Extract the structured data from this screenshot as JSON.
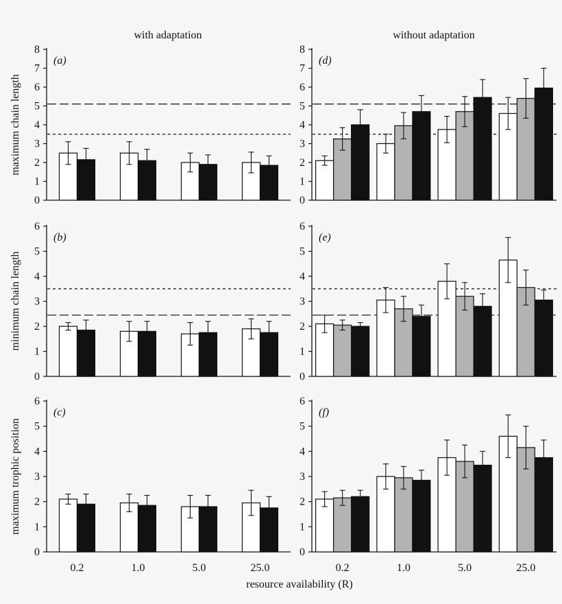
{
  "figure": {
    "column_titles": [
      "with adaptation",
      "without adaptation"
    ],
    "row_ylabels": [
      "maximum chain length",
      "minimum chain length",
      "maximum trophic position"
    ],
    "xlabel": "resource availability (R)",
    "categories": [
      "0.2",
      "1.0",
      "5.0",
      "25.0"
    ]
  },
  "colors": {
    "white_bar": "#ffffff",
    "grey_bar": "#b3b3b3",
    "black_bar": "#111111",
    "axis": "#111111"
  },
  "chart_data": [
    {
      "type": "bar",
      "panel_label": "(a)",
      "ylabel": "maximum chain length",
      "categories": [
        "0.2",
        "1.0",
        "5.0",
        "25.0"
      ],
      "ylim": [
        0,
        8
      ],
      "yticks": [
        0,
        1,
        2,
        3,
        4,
        5,
        6,
        7,
        8
      ],
      "series": [
        {
          "style": "white",
          "values": [
            2.5,
            2.5,
            2.0,
            2.0
          ],
          "errors": [
            0.6,
            0.6,
            0.5,
            0.55
          ]
        },
        {
          "style": "black",
          "values": [
            2.15,
            2.1,
            1.9,
            1.85
          ],
          "errors": [
            0.6,
            0.6,
            0.5,
            0.5
          ]
        }
      ],
      "reference_lines": [
        {
          "y": 5.1,
          "style": "long-dash"
        },
        {
          "y": 3.5,
          "style": "short-dash"
        }
      ]
    },
    {
      "type": "bar",
      "panel_label": "(b)",
      "ylabel": "minimum chain length",
      "categories": [
        "0.2",
        "1.0",
        "5.0",
        "25.0"
      ],
      "ylim": [
        0,
        6
      ],
      "yticks": [
        0,
        1,
        2,
        3,
        4,
        5,
        6
      ],
      "series": [
        {
          "style": "white",
          "values": [
            2.0,
            1.8,
            1.7,
            1.9
          ],
          "errors": [
            0.15,
            0.4,
            0.45,
            0.4
          ]
        },
        {
          "style": "black",
          "values": [
            1.85,
            1.8,
            1.75,
            1.75
          ],
          "errors": [
            0.4,
            0.4,
            0.45,
            0.45
          ]
        }
      ],
      "reference_lines": [
        {
          "y": 3.5,
          "style": "short-dash"
        },
        {
          "y": 2.45,
          "style": "long-dash"
        }
      ]
    },
    {
      "type": "bar",
      "panel_label": "(c)",
      "ylabel": "maximum trophic position",
      "categories": [
        "0.2",
        "1.0",
        "5.0",
        "25.0"
      ],
      "ylim": [
        0,
        6
      ],
      "yticks": [
        0,
        1,
        2,
        3,
        4,
        5,
        6
      ],
      "series": [
        {
          "style": "white",
          "values": [
            2.1,
            1.95,
            1.8,
            1.95
          ],
          "errors": [
            0.2,
            0.35,
            0.45,
            0.5
          ]
        },
        {
          "style": "black",
          "values": [
            1.9,
            1.85,
            1.8,
            1.75
          ],
          "errors": [
            0.4,
            0.4,
            0.45,
            0.45
          ]
        }
      ],
      "reference_lines": []
    },
    {
      "type": "bar",
      "panel_label": "(d)",
      "ylabel": "maximum chain length",
      "categories": [
        "0.2",
        "1.0",
        "5.0",
        "25.0"
      ],
      "ylim": [
        0,
        8
      ],
      "yticks": [
        0,
        1,
        2,
        3,
        4,
        5,
        6,
        7,
        8
      ],
      "series": [
        {
          "style": "white",
          "values": [
            2.1,
            3.0,
            3.75,
            4.6
          ],
          "errors": [
            0.25,
            0.5,
            0.7,
            0.85
          ]
        },
        {
          "style": "grey",
          "values": [
            3.25,
            3.95,
            4.7,
            5.4
          ],
          "errors": [
            0.6,
            0.7,
            0.8,
            1.05
          ]
        },
        {
          "style": "black",
          "values": [
            4.0,
            4.7,
            5.45,
            5.95
          ],
          "errors": [
            0.8,
            0.85,
            0.95,
            1.05
          ]
        }
      ],
      "reference_lines": [
        {
          "y": 5.1,
          "style": "long-dash"
        },
        {
          "y": 3.5,
          "style": "short-dash"
        }
      ]
    },
    {
      "type": "bar",
      "panel_label": "(e)",
      "ylabel": "minimum chain length",
      "categories": [
        "0.2",
        "1.0",
        "5.0",
        "25.0"
      ],
      "ylim": [
        0,
        6
      ],
      "yticks": [
        0,
        1,
        2,
        3,
        4,
        5,
        6
      ],
      "series": [
        {
          "style": "white",
          "values": [
            2.1,
            3.05,
            3.8,
            4.65
          ],
          "errors": [
            0.35,
            0.5,
            0.7,
            0.9
          ]
        },
        {
          "style": "grey",
          "values": [
            2.05,
            2.7,
            3.2,
            3.55
          ],
          "errors": [
            0.2,
            0.5,
            0.55,
            0.7
          ]
        },
        {
          "style": "black",
          "values": [
            2.0,
            2.4,
            2.8,
            3.05
          ],
          "errors": [
            0.15,
            0.45,
            0.5,
            0.4
          ]
        }
      ],
      "reference_lines": [
        {
          "y": 3.5,
          "style": "short-dash"
        },
        {
          "y": 2.45,
          "style": "long-dash"
        }
      ]
    },
    {
      "type": "bar",
      "panel_label": "(f)",
      "ylabel": "maximum trophic position",
      "categories": [
        "0.2",
        "1.0",
        "5.0",
        "25.0"
      ],
      "ylim": [
        0,
        6
      ],
      "yticks": [
        0,
        1,
        2,
        3,
        4,
        5,
        6
      ],
      "series": [
        {
          "style": "white",
          "values": [
            2.1,
            3.0,
            3.75,
            4.6
          ],
          "errors": [
            0.3,
            0.5,
            0.7,
            0.85
          ]
        },
        {
          "style": "grey",
          "values": [
            2.15,
            2.95,
            3.6,
            4.15
          ],
          "errors": [
            0.3,
            0.45,
            0.65,
            0.85
          ]
        },
        {
          "style": "black",
          "values": [
            2.2,
            2.85,
            3.45,
            3.75
          ],
          "errors": [
            0.25,
            0.4,
            0.55,
            0.7
          ]
        }
      ],
      "reference_lines": []
    }
  ]
}
